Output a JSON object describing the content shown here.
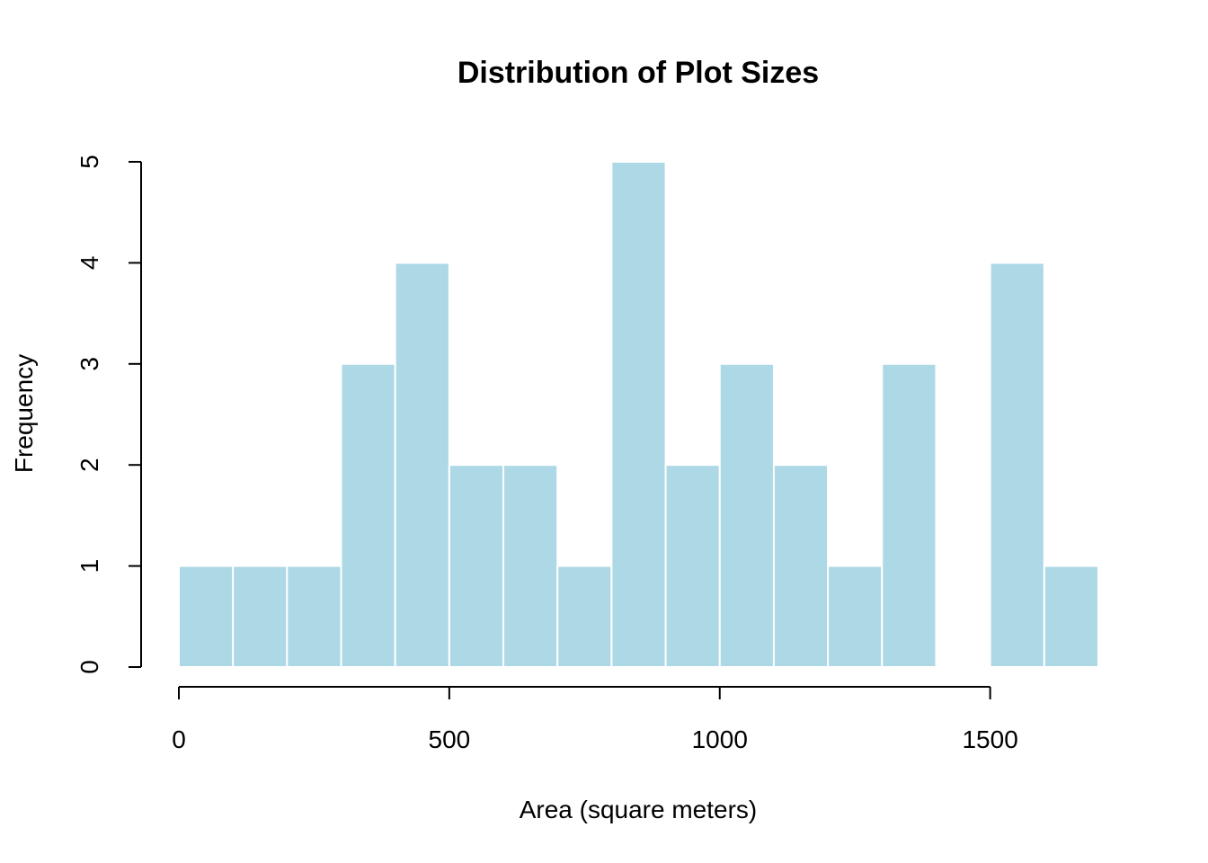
{
  "chart_data": {
    "type": "bar",
    "title": "Distribution of Plot Sizes",
    "xlabel": "Area (square meters)",
    "ylabel": "Frequency",
    "bar_color": "#add8e6",
    "bar_edge_color": "#ffffff",
    "grid": false,
    "xlim": [
      0,
      1700
    ],
    "ylim": [
      0,
      5
    ],
    "x_ticks": [
      0,
      500,
      1000,
      1500
    ],
    "y_ticks": [
      0,
      1,
      2,
      3,
      4,
      5
    ],
    "bins": [
      {
        "start": 0,
        "end": 100,
        "count": 1
      },
      {
        "start": 100,
        "end": 200,
        "count": 1
      },
      {
        "start": 200,
        "end": 300,
        "count": 1
      },
      {
        "start": 300,
        "end": 400,
        "count": 3
      },
      {
        "start": 400,
        "end": 500,
        "count": 4
      },
      {
        "start": 500,
        "end": 600,
        "count": 2
      },
      {
        "start": 600,
        "end": 700,
        "count": 2
      },
      {
        "start": 700,
        "end": 800,
        "count": 1
      },
      {
        "start": 800,
        "end": 900,
        "count": 5
      },
      {
        "start": 900,
        "end": 1000,
        "count": 2
      },
      {
        "start": 1000,
        "end": 1100,
        "count": 3
      },
      {
        "start": 1100,
        "end": 1200,
        "count": 2
      },
      {
        "start": 1200,
        "end": 1300,
        "count": 1
      },
      {
        "start": 1300,
        "end": 1400,
        "count": 3
      },
      {
        "start": 1400,
        "end": 1500,
        "count": 0
      },
      {
        "start": 1500,
        "end": 1600,
        "count": 4
      },
      {
        "start": 1600,
        "end": 1700,
        "count": 1
      }
    ]
  }
}
